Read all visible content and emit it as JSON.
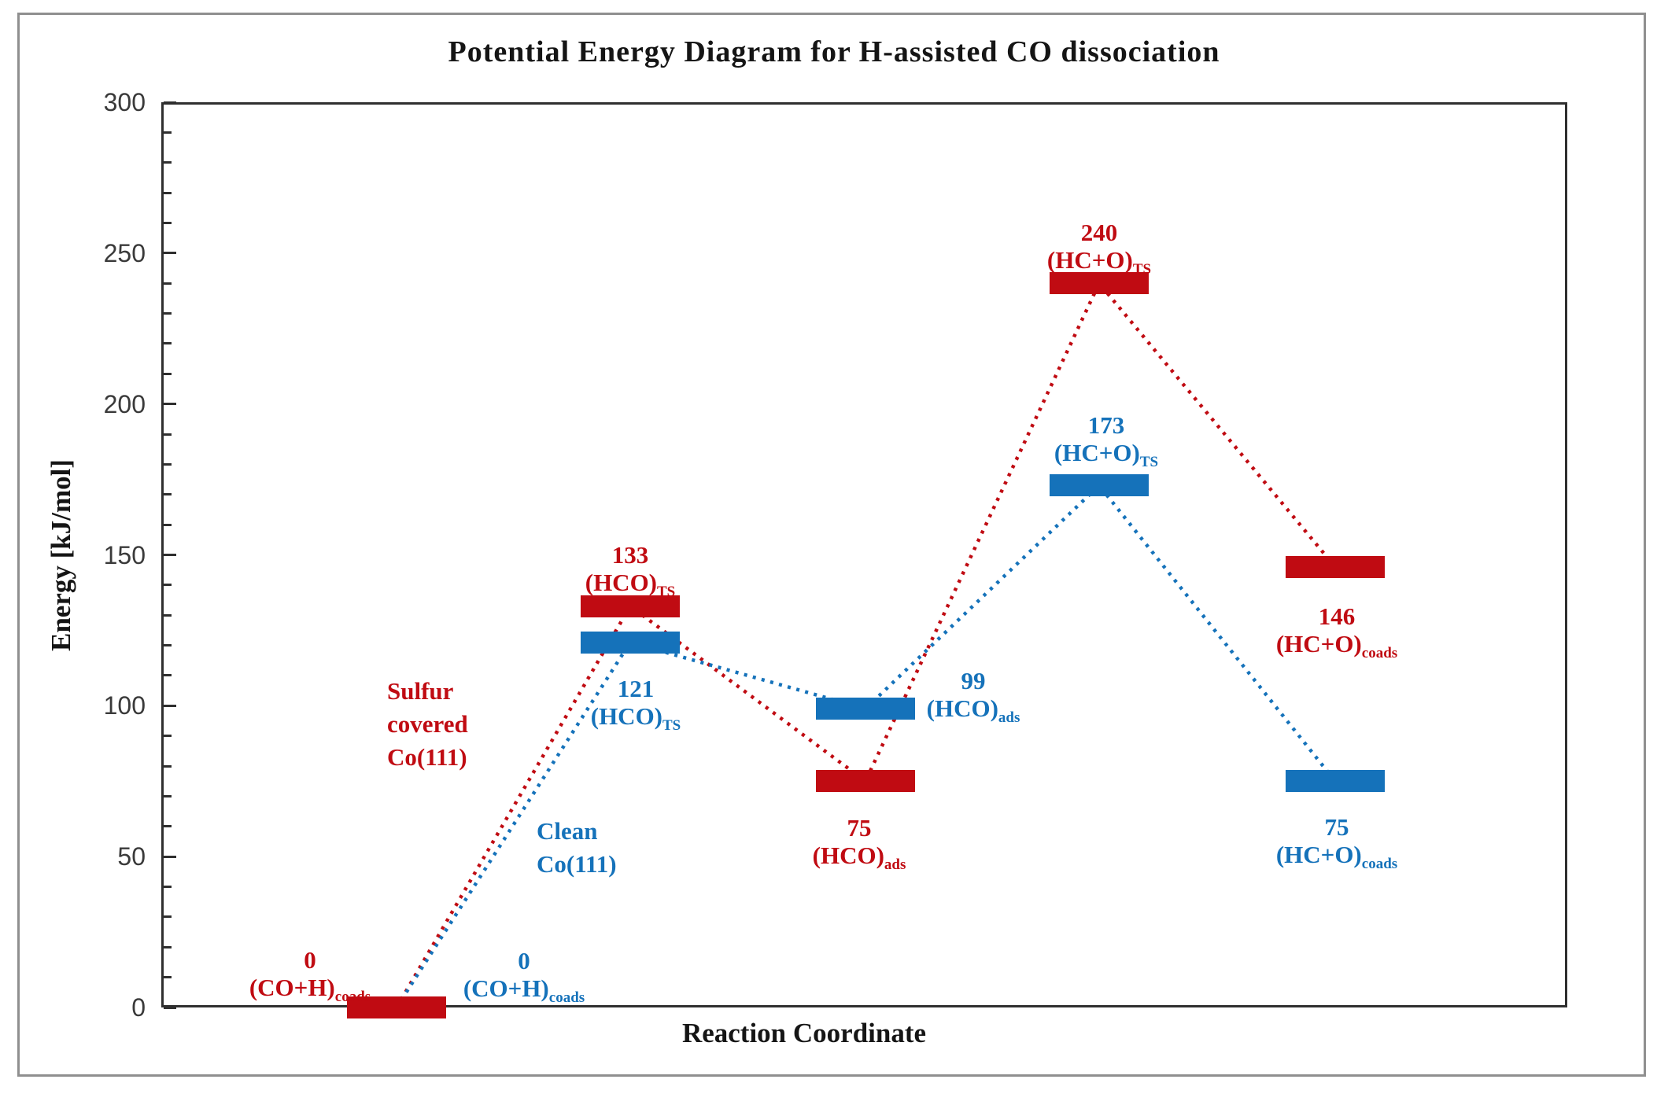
{
  "figure": {
    "title": "Potential Energy Diagram for H-assisted CO dissociation",
    "x_axis_title": "Reaction Coordinate",
    "y_axis_title": "Energy [kJ/mol]"
  },
  "chart_data": {
    "type": "line",
    "variant": "potential-energy-level-diagram",
    "title": "Potential Energy Diagram for H-assisted CO dissociation",
    "xlabel": "Reaction Coordinate",
    "ylabel": "Energy [kJ/mol]",
    "ylim": [
      0,
      300
    ],
    "yticks": [
      0,
      50,
      100,
      150,
      200,
      250,
      300
    ],
    "y_minor_step": 10,
    "y_major_step": 50,
    "grid": false,
    "legend": "inline-annotations",
    "line_style": "dotted",
    "marker": "thick-horizontal-bar",
    "stages": [
      "(CO+H)coads",
      "(HCO)TS",
      "(HCO)ads",
      "(HC+O)TS",
      "(HC+O)coads"
    ],
    "series": [
      {
        "name": "Sulfur covered Co(111)",
        "color": "#C00B12",
        "values": [
          0,
          133,
          75,
          240,
          146
        ],
        "points": [
          {
            "stage": 0,
            "value": 0,
            "value_label": "0",
            "formula": "(CO+H)",
            "subscript": "coads",
            "show_bar": true,
            "label_dx": -110,
            "label_dy": -78
          },
          {
            "stage": 1,
            "value": 133,
            "value_label": "133",
            "formula": "(HCO)",
            "subscript": "TS",
            "show_bar": true,
            "label_dx": 0,
            "label_dy": -83
          },
          {
            "stage": 2,
            "value": 75,
            "value_label": "75",
            "formula": "(HCO)",
            "subscript": "ads",
            "show_bar": true,
            "label_dx": -8,
            "label_dy": 42
          },
          {
            "stage": 3,
            "value": 240,
            "value_label": "240",
            "formula": "(HC+O)",
            "subscript": "TS",
            "show_bar": true,
            "label_dx": 0,
            "label_dy": -82
          },
          {
            "stage": 4,
            "value": 146,
            "value_label": "146",
            "formula": "(HC+O)",
            "subscript": "coads",
            "show_bar": true,
            "label_dx": 2,
            "label_dy": 45
          }
        ]
      },
      {
        "name": "Clean Co(111)",
        "color": "#1572BA",
        "values": [
          0,
          121,
          99,
          173,
          75
        ],
        "points": [
          {
            "stage": 0,
            "value": 0,
            "value_label": "0",
            "formula": "(CO+H)",
            "subscript": "coads",
            "show_bar": false,
            "label_dx": 162,
            "label_dy": -77
          },
          {
            "stage": 1,
            "value": 121,
            "value_label": "121",
            "formula": "(HCO)",
            "subscript": "TS",
            "show_bar": true,
            "label_dx": 7,
            "label_dy": 41
          },
          {
            "stage": 2,
            "value": 99,
            "value_label": "99",
            "formula": "(HCO)",
            "subscript": "ads",
            "show_bar": true,
            "label_dx": 137,
            "label_dy": -53
          },
          {
            "stage": 3,
            "value": 173,
            "value_label": "173",
            "formula": "(HC+O)",
            "subscript": "TS",
            "show_bar": true,
            "label_dx": 9,
            "label_dy": -94
          },
          {
            "stage": 4,
            "value": 75,
            "value_label": "75",
            "formula": "(HC+O)",
            "subscript": "coads",
            "show_bar": true,
            "label_dx": 2,
            "label_dy": 41
          }
        ]
      }
    ],
    "annotations": [
      {
        "lines": [
          "Sulfur",
          "covered",
          "Co(111)"
        ],
        "color": "#C00B12",
        "x": 492,
        "y": 858
      },
      {
        "lines": [
          "Clean",
          "Co(111)"
        ],
        "color": "#1572BA",
        "x": 682,
        "y": 1036
      }
    ]
  }
}
